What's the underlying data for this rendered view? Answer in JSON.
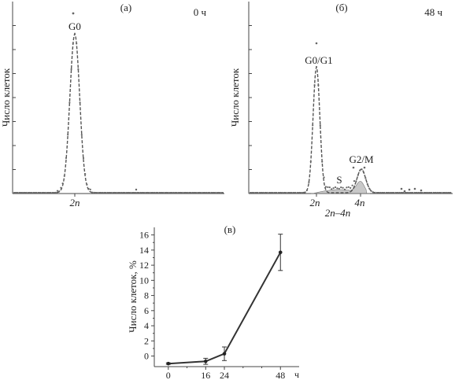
{
  "chart_data": [
    {
      "type": "line",
      "panel_label": "(а)",
      "time_label": "0 ч",
      "ylabel": "Число клеток",
      "x_tick_labels": [
        "2n"
      ],
      "peaks": [
        {
          "label": "G0",
          "x": "2n"
        }
      ],
      "grid": false
    },
    {
      "type": "line",
      "panel_label": "(б)",
      "time_label": "48 ч",
      "ylabel": "Число клеток",
      "x_tick_labels": [
        "2n",
        "4n"
      ],
      "x_range_label": "2n–4n",
      "peaks": [
        {
          "label": "G0/G1",
          "x": "2n"
        },
        {
          "label": "S",
          "x": "2n–4n"
        },
        {
          "label": "G2/M",
          "x": "4n"
        }
      ],
      "grid": false
    },
    {
      "type": "line",
      "panel_label": "(в)",
      "ylabel": "Число клеток, %",
      "xlabel": "ч",
      "x": [
        0,
        16,
        24,
        48
      ],
      "values": [
        -1,
        -0.7,
        0.3,
        13.7
      ],
      "errors": [
        0.1,
        0.4,
        0.9,
        2.4
      ],
      "xlim": [
        -6,
        56
      ],
      "ylim": [
        -1.4,
        17
      ],
      "yticks": [
        0,
        2,
        4,
        6,
        8,
        10,
        12,
        14,
        16
      ],
      "xticks": [
        0,
        16,
        24,
        48
      ],
      "grid": false
    }
  ]
}
